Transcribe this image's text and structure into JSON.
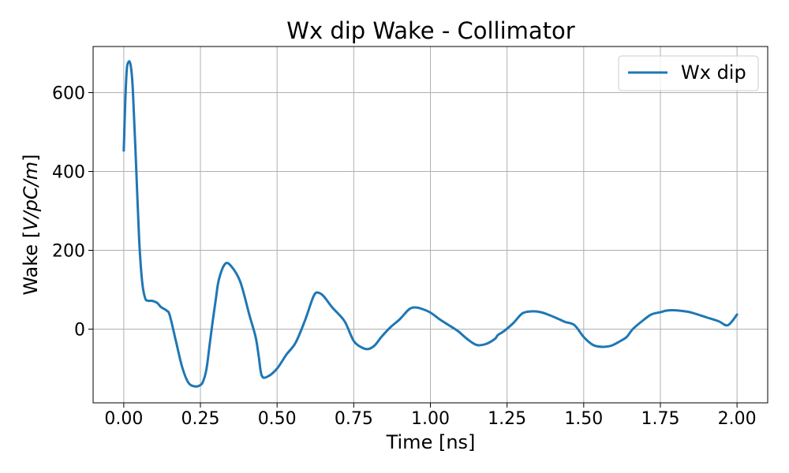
{
  "chart_data": {
    "type": "line",
    "title": "Wx dip Wake - Collimator",
    "xlabel": "Time [ns]",
    "ylabel_prefix": "Wake [",
    "ylabel_italic": "V/pC/m",
    "ylabel_suffix": "]",
    "xlim": [
      -0.1,
      2.1
    ],
    "ylim": [
      -187,
      717
    ],
    "xticks": [
      0.0,
      0.25,
      0.5,
      0.75,
      1.0,
      1.25,
      1.5,
      1.75,
      2.0
    ],
    "xtick_labels": [
      "0.00",
      "0.25",
      "0.50",
      "0.75",
      "1.00",
      "1.25",
      "1.50",
      "1.75",
      "2.00"
    ],
    "yticks": [
      0,
      200,
      400,
      600
    ],
    "ytick_labels": [
      "0",
      "200",
      "400",
      "600"
    ],
    "grid": true,
    "legend_position": "top-right",
    "series": [
      {
        "name": "Wx dip",
        "color": "#1f77b4",
        "x": [
          0.0,
          0.005,
          0.01,
          0.015,
          0.02,
          0.025,
          0.03,
          0.04,
          0.05,
          0.06,
          0.07,
          0.08,
          0.09,
          0.1,
          0.11,
          0.12,
          0.13,
          0.14,
          0.15,
          0.17,
          0.19,
          0.21,
          0.23,
          0.25,
          0.26,
          0.27,
          0.28,
          0.29,
          0.3,
          0.31,
          0.33,
          0.35,
          0.38,
          0.41,
          0.43,
          0.44,
          0.45,
          0.47,
          0.5,
          0.53,
          0.56,
          0.59,
          0.61,
          0.62,
          0.63,
          0.65,
          0.68,
          0.72,
          0.75,
          0.78,
          0.8,
          0.82,
          0.84,
          0.87,
          0.9,
          0.93,
          0.95,
          0.97,
          1.0,
          1.03,
          1.06,
          1.09,
          1.12,
          1.15,
          1.18,
          1.21,
          1.22,
          1.24,
          1.27,
          1.3,
          1.33,
          1.36,
          1.39,
          1.42,
          1.44,
          1.47,
          1.5,
          1.53,
          1.56,
          1.59,
          1.62,
          1.64,
          1.66,
          1.69,
          1.72,
          1.75,
          1.77,
          1.79,
          1.81,
          1.84,
          1.86,
          1.9,
          1.94,
          1.97,
          2.0
        ],
        "values": [
          453,
          580,
          660,
          677,
          677,
          655,
          600,
          420,
          230,
          120,
          78,
          72,
          72,
          70,
          66,
          57,
          52,
          47,
          35,
          -30,
          -95,
          -135,
          -145,
          -142,
          -130,
          -100,
          -40,
          20,
          75,
          125,
          165,
          160,
          120,
          35,
          -20,
          -68,
          -118,
          -120,
          -100,
          -65,
          -35,
          20,
          65,
          85,
          93,
          85,
          55,
          20,
          -30,
          -48,
          -50,
          -40,
          -20,
          5,
          25,
          50,
          55,
          52,
          42,
          25,
          10,
          -5,
          -25,
          -40,
          -38,
          -25,
          -15,
          -5,
          15,
          40,
          45,
          43,
          35,
          25,
          18,
          10,
          -20,
          -40,
          -45,
          -42,
          -30,
          -20,
          0,
          20,
          37,
          43,
          47,
          48,
          47,
          44,
          40,
          30,
          20,
          10,
          37
        ]
      }
    ]
  }
}
